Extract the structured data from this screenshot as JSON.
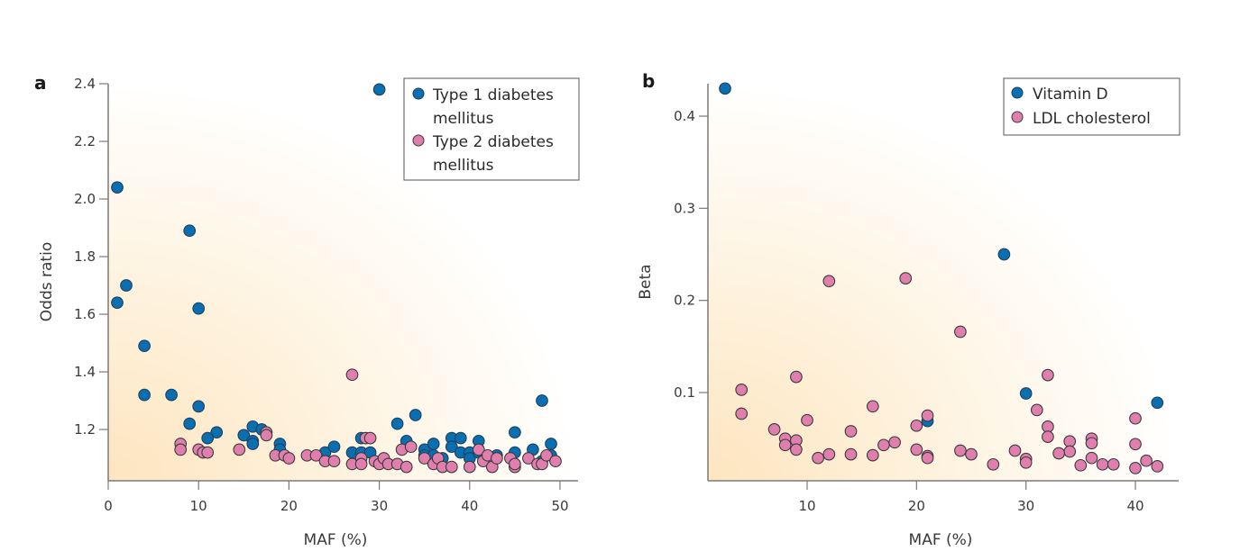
{
  "colors": {
    "series1": "#0a6fb0",
    "series2": "#e07fae",
    "marker_edge": "#3a3a3a",
    "axis": "#7a7a7a",
    "bg_warm": "#fde9c8",
    "bg_white": "#ffffff"
  },
  "chart_data": [
    {
      "panel": "a",
      "type": "scatter",
      "title": "",
      "xlabel": "MAF (%)",
      "ylabel": "Odds ratio",
      "xlim": [
        0,
        52
      ],
      "ylim": [
        1.02,
        2.4
      ],
      "xticks": [
        0,
        10,
        20,
        30,
        40,
        50
      ],
      "xtick_labels": [
        "0",
        "10",
        "20",
        "30",
        "40",
        "50"
      ],
      "yticks": [
        1.2,
        1.4,
        1.6,
        1.8,
        2.0,
        2.2,
        2.4
      ],
      "ytick_labels": [
        "1.2",
        "1.4",
        "1.6",
        "1.8",
        "2.0",
        "2.2",
        "2.4"
      ],
      "grid": false,
      "legend_position": "top-right",
      "series": [
        {
          "name": "Type 1 diabetes mellitus",
          "legend_lines": [
            "Type 1 diabetes",
            "mellitus"
          ],
          "color_key": "series1",
          "x": [
            30,
            1,
            9,
            2,
            1,
            10,
            4,
            4,
            7,
            10,
            9,
            12,
            11,
            15,
            16,
            16,
            16,
            17,
            19,
            19,
            24,
            25,
            27,
            28,
            28,
            29,
            32,
            33,
            34,
            35,
            35,
            36,
            36,
            37,
            38,
            38,
            39,
            39,
            40,
            40,
            41,
            41,
            43,
            45,
            45,
            47,
            48,
            48,
            49,
            49
          ],
          "y": [
            2.38,
            2.04,
            1.89,
            1.7,
            1.64,
            1.62,
            1.49,
            1.32,
            1.32,
            1.28,
            1.22,
            1.19,
            1.17,
            1.18,
            1.21,
            1.16,
            1.15,
            1.2,
            1.15,
            1.13,
            1.12,
            1.14,
            1.12,
            1.17,
            1.12,
            1.12,
            1.22,
            1.16,
            1.25,
            1.13,
            1.11,
            1.15,
            1.11,
            1.1,
            1.17,
            1.14,
            1.17,
            1.12,
            1.12,
            1.1,
            1.16,
            1.12,
            1.11,
            1.19,
            1.12,
            1.13,
            1.3,
            1.09,
            1.15,
            1.11
          ]
        },
        {
          "name": "Type 2 diabetes mellitus",
          "legend_lines": [
            "Type 2 diabetes",
            "mellitus"
          ],
          "color_key": "series2",
          "x": [
            27,
            8,
            8,
            10,
            10.5,
            11,
            14.5,
            17.5,
            17.5,
            18.5,
            19.5,
            20,
            22,
            23,
            24,
            25,
            27,
            28,
            28,
            28.5,
            29,
            29.5,
            30,
            30.5,
            31,
            32,
            32.5,
            33,
            33.5,
            35,
            36,
            36.5,
            37,
            38,
            40,
            41,
            41.5,
            42,
            42.5,
            43,
            44.5,
            45,
            45,
            46.5,
            47.5,
            48,
            48.5,
            49.5
          ],
          "y": [
            1.39,
            1.15,
            1.13,
            1.13,
            1.12,
            1.12,
            1.13,
            1.19,
            1.18,
            1.11,
            1.11,
            1.1,
            1.11,
            1.11,
            1.09,
            1.09,
            1.08,
            1.1,
            1.08,
            1.17,
            1.17,
            1.09,
            1.08,
            1.1,
            1.08,
            1.08,
            1.13,
            1.07,
            1.14,
            1.1,
            1.08,
            1.1,
            1.07,
            1.07,
            1.07,
            1.13,
            1.09,
            1.11,
            1.07,
            1.1,
            1.1,
            1.07,
            1.08,
            1.1,
            1.08,
            1.08,
            1.11,
            1.09
          ]
        }
      ]
    },
    {
      "panel": "b",
      "type": "scatter",
      "title": "",
      "xlabel": "MAF (%)",
      "ylabel": "Beta",
      "xlim": [
        1,
        44
      ],
      "ylim": [
        0.004,
        0.435
      ],
      "xticks": [
        10,
        20,
        30,
        40
      ],
      "xtick_labels": [
        "10",
        "20",
        "30",
        "40"
      ],
      "yticks": [
        0.1,
        0.2,
        0.3,
        0.4
      ],
      "ytick_labels": [
        "0.1",
        "0.2",
        "0.3",
        "0.4"
      ],
      "grid": false,
      "legend_position": "top-right",
      "series": [
        {
          "name": "Vitamin D",
          "legend_lines": [
            "Vitamin D"
          ],
          "color_key": "series1",
          "x": [
            2.5,
            28,
            30,
            42,
            21
          ],
          "y": [
            0.43,
            0.25,
            0.099,
            0.089,
            0.069
          ]
        },
        {
          "name": "LDL cholesterol",
          "legend_lines": [
            "LDL cholesterol"
          ],
          "color_key": "series2",
          "x": [
            19,
            12,
            24,
            9,
            32,
            4,
            4,
            16,
            21,
            31,
            10,
            40,
            20,
            7,
            32,
            8,
            9,
            14,
            36,
            32,
            8,
            18,
            17,
            34,
            36,
            40,
            20,
            24,
            29,
            9,
            25,
            34,
            33,
            12,
            14,
            16,
            11,
            21,
            21,
            30,
            36,
            30,
            41,
            27,
            35,
            37,
            38,
            40,
            42
          ],
          "y": [
            0.224,
            0.221,
            0.166,
            0.117,
            0.119,
            0.103,
            0.077,
            0.085,
            0.075,
            0.081,
            0.07,
            0.072,
            0.064,
            0.06,
            0.063,
            0.05,
            0.048,
            0.058,
            0.05,
            0.052,
            0.043,
            0.046,
            0.043,
            0.047,
            0.045,
            0.044,
            0.038,
            0.037,
            0.037,
            0.038,
            0.033,
            0.036,
            0.034,
            0.033,
            0.033,
            0.032,
            0.029,
            0.031,
            0.029,
            0.028,
            0.029,
            0.024,
            0.026,
            0.022,
            0.021,
            0.022,
            0.022,
            0.018,
            0.02
          ]
        }
      ]
    }
  ]
}
